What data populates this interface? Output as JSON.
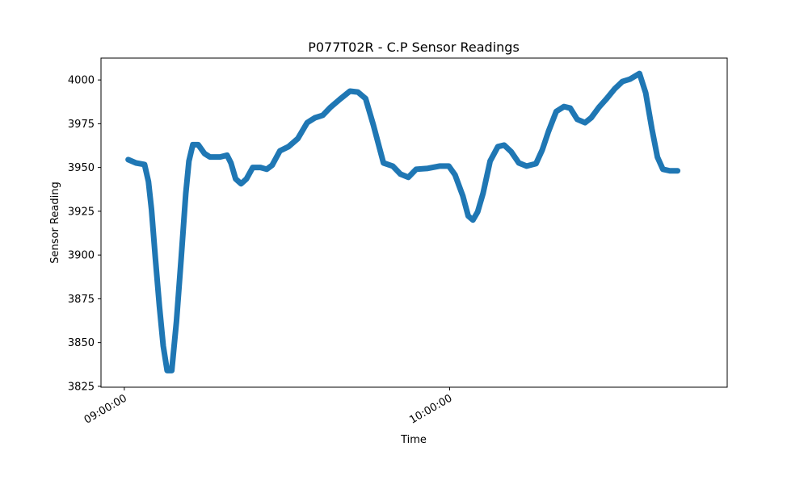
{
  "chart_data": {
    "type": "line",
    "title": "P077T02R - C.P Sensor Readings",
    "x_label": "Time",
    "y_label": "Sensor Reading",
    "x": [
      "09:00:43",
      "09:02:09",
      "09:03:44",
      "09:04:27",
      "09:05:01",
      "09:05:44",
      "09:06:28",
      "09:07:11",
      "09:07:54",
      "09:08:45",
      "09:09:37",
      "09:10:29",
      "09:11:20",
      "09:11:55",
      "09:12:38",
      "09:13:38",
      "09:14:47",
      "09:15:47",
      "09:17:39",
      "09:18:57",
      "09:19:40",
      "09:20:32",
      "09:21:32",
      "09:22:32",
      "09:23:41",
      "09:25:07",
      "09:26:16",
      "09:27:16",
      "09:28:42",
      "09:30:17",
      "09:32:00",
      "09:33:44",
      "09:35:10",
      "09:36:36",
      "09:38:02",
      "09:39:46",
      "09:41:37",
      "09:43:04",
      "09:44:30",
      "09:45:56",
      "09:47:48",
      "09:49:31",
      "09:50:57",
      "09:52:23",
      "09:53:50",
      "09:55:59",
      "09:58:08",
      "09:59:51",
      "10:01:00",
      "10:02:26",
      "10:03:26",
      "10:04:18",
      "10:05:10",
      "10:06:10",
      "10:07:28",
      "10:08:54",
      "10:10:03",
      "10:11:20",
      "10:12:46",
      "10:14:12",
      "10:15:56",
      "10:17:05",
      "10:18:14",
      "10:19:40",
      "10:21:06",
      "10:22:15",
      "10:23:32",
      "10:24:58",
      "10:26:07",
      "10:27:33",
      "10:28:59",
      "10:30:26",
      "10:31:52",
      "10:33:18",
      "10:35:01",
      "10:36:10",
      "10:37:19",
      "10:38:20",
      "10:39:20",
      "10:40:37",
      "10:42:03"
    ],
    "series": [
      {
        "name": "C.P",
        "color": "#1f77b4",
        "values": [
          3954.5,
          3952.6,
          3951.7,
          3942,
          3926,
          3898,
          3871,
          3848,
          3834,
          3834,
          3862,
          3898,
          3935,
          3953.6,
          3963,
          3963,
          3958,
          3956,
          3956,
          3957,
          3952.6,
          3943.5,
          3940.7,
          3943.5,
          3950,
          3950,
          3949,
          3951.3,
          3959.5,
          3961.9,
          3966.5,
          3975.6,
          3978.4,
          3979.8,
          3984.4,
          3989,
          3993.6,
          3993.1,
          3989.4,
          3974.3,
          3952.6,
          3950.8,
          3946.2,
          3944.4,
          3949,
          3949.5,
          3950.8,
          3950.8,
          3945.8,
          3933.8,
          3922.3,
          3920,
          3924.6,
          3935.2,
          3953.6,
          3961.9,
          3962.8,
          3959.1,
          3952.6,
          3950.8,
          3952.2,
          3960,
          3970.6,
          3982,
          3984.8,
          3983.9,
          3977.5,
          3975.6,
          3978.4,
          3984.4,
          3989.4,
          3994.9,
          3999.1,
          4000.5,
          4003.7,
          3992.6,
          3972,
          3955.9,
          3949,
          3948.1,
          3948.1
        ]
      }
    ],
    "xlim": [
      "08:55:42",
      "10:51:12"
    ],
    "xticks": [
      "09:00:00",
      "10:00:00"
    ],
    "ylim": [
      3824.5,
      4012.5
    ],
    "yticks": [
      3825,
      3850,
      3875,
      3900,
      3925,
      3950,
      3975,
      4000
    ]
  }
}
